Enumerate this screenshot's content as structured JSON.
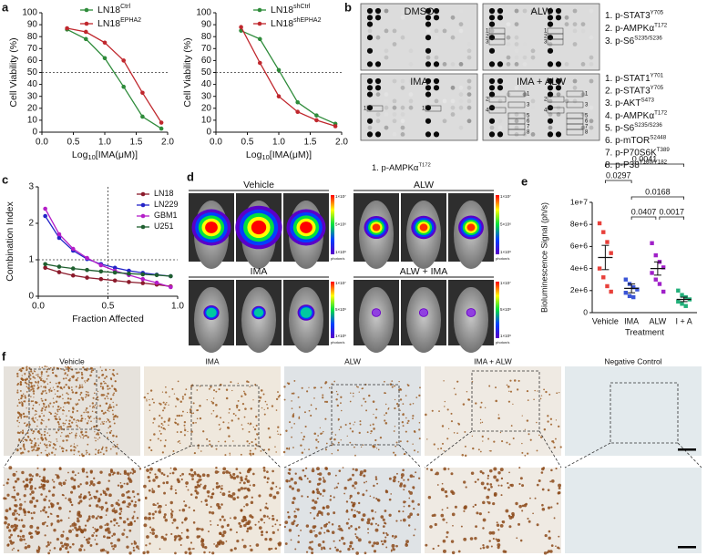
{
  "panel_labels": [
    "a",
    "b",
    "c",
    "d",
    "e",
    "f"
  ],
  "chart_data": [
    {
      "type": "line",
      "x_label": [
        "Log",
        "10",
        "[IMA(μM)]"
      ],
      "y_label": "Cell Viability (%)",
      "x": [
        0.4,
        0.7,
        1.0,
        1.3,
        1.6,
        1.9
      ],
      "series": [
        {
          "name": "LN18",
          "name_sup": "Ctrl",
          "color": "#2e8b3a",
          "values": [
            86,
            78,
            62,
            38,
            13,
            3
          ]
        },
        {
          "name": "LN18",
          "name_sup": "EPHA2",
          "color": "#c0272d",
          "values": [
            87,
            84,
            75,
            60,
            33,
            8
          ]
        }
      ],
      "xlim": [
        0,
        2
      ],
      "xticks": [
        {
          "value": 0,
          "label": "0.0"
        },
        0.5,
        {
          "value": 1,
          "label": "1.0"
        },
        1.5,
        {
          "value": 2,
          "label": "2.0"
        }
      ],
      "ylim": [
        0,
        100
      ],
      "yticks": [
        0,
        10,
        20,
        30,
        40,
        50,
        60,
        70,
        80,
        90,
        100
      ],
      "ref_y": 50
    },
    {
      "type": "line",
      "x_label": [
        "Log",
        "10",
        "[IMA(μM)]"
      ],
      "y_label": "Cell Viability (%)",
      "x": [
        0.4,
        0.7,
        1.0,
        1.3,
        1.6,
        1.9
      ],
      "series": [
        {
          "name": "LN18",
          "name_sup": "shCtrl",
          "color": "#2e8b3a",
          "values": [
            85,
            78,
            52,
            25,
            14,
            7
          ]
        },
        {
          "name": "LN18",
          "name_sup": "shEPHA2",
          "color": "#c0272d",
          "values": [
            88,
            58,
            30,
            17,
            10,
            5
          ]
        }
      ],
      "xlim": [
        0,
        2
      ],
      "xticks": [
        {
          "value": 0,
          "label": "0.0"
        },
        0.5,
        {
          "value": 1,
          "label": "1.0"
        },
        1.5,
        {
          "value": 2,
          "label": "2.0"
        }
      ],
      "ylim": [
        0,
        100
      ],
      "yticks": [
        0,
        10,
        20,
        30,
        40,
        50,
        60,
        70,
        80,
        90,
        100
      ],
      "ref_y": 50
    },
    {
      "type": "line",
      "x_label": "Fraction Affected",
      "y_label": "Combination Index",
      "x": [
        0.05,
        0.15,
        0.25,
        0.35,
        0.45,
        0.55,
        0.65,
        0.75,
        0.85,
        0.95
      ],
      "series": [
        {
          "name": "LN18",
          "color": "#8b1a2b",
          "values": [
            0.78,
            0.66,
            0.57,
            0.51,
            0.47,
            0.43,
            0.39,
            0.36,
            0.32,
            0.27
          ]
        },
        {
          "name": "LN229",
          "color": "#2323c8",
          "values": [
            2.2,
            1.6,
            1.25,
            1.02,
            0.88,
            0.78,
            0.7,
            0.64,
            0.59,
            0.55
          ]
        },
        {
          "name": "GBM1",
          "color": "#b41ec8",
          "values": [
            2.4,
            1.7,
            1.3,
            1.05,
            0.85,
            0.7,
            0.58,
            0.47,
            0.37,
            0.25
          ]
        },
        {
          "name": "U251",
          "color": "#1f5f2f",
          "values": [
            0.88,
            0.81,
            0.76,
            0.72,
            0.68,
            0.65,
            0.62,
            0.6,
            0.58,
            0.55
          ]
        }
      ],
      "xlim": [
        0,
        1
      ],
      "xticks": [
        {
          "value": 0,
          "label": "0.0"
        },
        0.5,
        {
          "value": 1,
          "label": "1.0"
        }
      ],
      "ylim": [
        0,
        3
      ],
      "yticks": [
        0,
        1,
        2,
        3
      ],
      "ref_y": 1,
      "ref_x": 0.5
    },
    {
      "type": "dot",
      "x_label": "Treatment",
      "y_label": "Bioluminescence Signal (ph/s)",
      "categories": [
        "Vehicle",
        "IMA",
        "ALW",
        "I + A"
      ],
      "colors": [
        "#e8403a",
        "#3b55d6",
        "#a020c8",
        "#22b07a"
      ],
      "values": [
        [
          8100000,
          7300000,
          6400000,
          5400000,
          4000000,
          3200000,
          2400000,
          1900000
        ],
        [
          3000000,
          2600000,
          2300000,
          2100000,
          1800000,
          1500000,
          1400000
        ],
        [
          6300000,
          5200000,
          4600000,
          4100000,
          3600000,
          3000000,
          2600000,
          1900000
        ],
        [
          2000000,
          1600000,
          1400000,
          1200000,
          1000000,
          800000,
          600000
        ]
      ],
      "means": [
        5000000,
        2200000,
        4000000,
        1200000
      ],
      "sems": [
        1100000,
        400000,
        600000,
        200000
      ],
      "ylim": [
        0,
        10000000
      ],
      "yticks": [
        0,
        {
          "value": 2000000,
          "label": "2e+6"
        },
        {
          "value": 4000000,
          "label": "4e+6"
        },
        {
          "value": 6000000,
          "label": "6e+6"
        },
        {
          "value": 8000000,
          "label": "8e+6"
        },
        {
          "value": 10000000,
          "label": "1e+7"
        }
      ],
      "comparisons": [
        {
          "groups": [
            0,
            3
          ],
          "p": 0.0041
        },
        {
          "groups": [
            0,
            1
          ],
          "p": 0.0297
        },
        {
          "groups": [
            1,
            3
          ],
          "p": 0.0168
        },
        {
          "groups": [
            1,
            2
          ],
          "p": 0.0407
        },
        {
          "groups": [
            2,
            3
          ],
          "p": 0.0017
        }
      ]
    }
  ],
  "blots": {
    "panels": [
      "DMSO",
      "ALW",
      "IMA",
      "IMA + ALW"
    ],
    "alw_spots": [
      "1",
      "2",
      "3"
    ],
    "ima_spots": [
      "1"
    ],
    "combo_spots": [
      "1",
      "2",
      "3",
      "4",
      "5",
      "6",
      "7",
      "8"
    ],
    "ima_target": {
      "text": "1. p-AMPKα",
      "sup": "T172"
    },
    "alw_targets": [
      {
        "text": "1. p-STAT3",
        "sup": "Y705"
      },
      {
        "text": "2. p-AMPKα",
        "sup": "T172"
      },
      {
        "text": "3. p-S6",
        "sup": "S235/S236"
      }
    ],
    "combo_targets": [
      {
        "text": "1. p-STAT1",
        "sup": "Y701"
      },
      {
        "text": "2. p-STAT3",
        "sup": "Y705"
      },
      {
        "text": "3. p-AKT",
        "sup": "S473"
      },
      {
        "text": "4. p-AMPKα",
        "sup": "T172"
      },
      {
        "text": "5. p-S6",
        "sup": "S235/S236"
      },
      {
        "text": "6. p-mTOR",
        "sup": "S2448"
      },
      {
        "text": "7. p-P70S6K",
        "sup": "T389"
      },
      {
        "text": "8. p-P38",
        "sup": "T180/Y182"
      }
    ]
  },
  "imaging": {
    "groups": [
      "Vehicle",
      "ALW",
      "IMA",
      "ALW + IMA"
    ],
    "colorbar_labels": [
      "1×10⁷",
      "5×10⁶",
      "1×10⁶"
    ],
    "colorbar_unit": "photon/s"
  },
  "ihc": {
    "columns": [
      "Vehicle",
      "IMA",
      "ALW",
      "IMA + ALW",
      "Negative Control"
    ]
  }
}
